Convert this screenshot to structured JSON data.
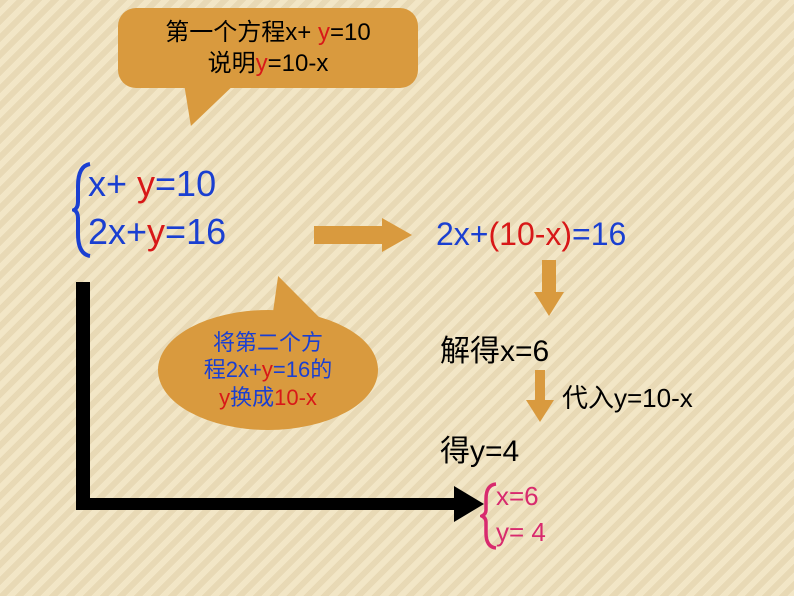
{
  "colors": {
    "blue": "#1a3fd1",
    "red": "#d81818",
    "black": "#000000",
    "orange": "#d99a3e",
    "magenta": "#d82a6e",
    "bg_stripe_light": "#f2e6c6",
    "bg_stripe_dark": "#e8d9b5"
  },
  "bubble1": {
    "line1": [
      {
        "t": "第一个方程x+ ",
        "c": "black"
      },
      {
        "t": "y",
        "c": "red"
      },
      {
        "t": "=10",
        "c": "black"
      }
    ],
    "line2": [
      {
        "t": "说明",
        "c": "black"
      },
      {
        "t": "y",
        "c": "red"
      },
      {
        "t": "=10-x",
        "c": "black"
      }
    ]
  },
  "system": {
    "eq1": [
      {
        "t": "x+ ",
        "c": "blue"
      },
      {
        "t": "y",
        "c": "red"
      },
      {
        "t": "=10",
        "c": "blue"
      }
    ],
    "eq2": [
      {
        "t": "2x+",
        "c": "blue"
      },
      {
        "t": "y",
        "c": "red"
      },
      {
        "t": "=16",
        "c": "blue"
      }
    ]
  },
  "bubble2": {
    "line1": [
      {
        "t": "将第二个方",
        "c": "blue"
      }
    ],
    "line2": [
      {
        "t": "程2x+",
        "c": "blue"
      },
      {
        "t": "y",
        "c": "red"
      },
      {
        "t": "=16的",
        "c": "blue"
      }
    ],
    "line3": [
      {
        "t": "y",
        "c": "red"
      },
      {
        "t": "换成",
        "c": "blue"
      },
      {
        "t": "10-x",
        "c": "red"
      }
    ]
  },
  "substitution": [
    {
      "t": "2x+",
      "c": "blue"
    },
    {
      "t": "(10-x)",
      "c": "red"
    },
    {
      "t": "=16",
      "c": "blue"
    }
  ],
  "solve1": [
    {
      "t": "解得x=6",
      "c": "black"
    }
  ],
  "subst_label": [
    {
      "t": "代入y=10-x",
      "c": "black"
    }
  ],
  "solve2": [
    {
      "t": "得y=4",
      "c": "black"
    }
  ],
  "result": {
    "r1": [
      {
        "t": "x=6",
        "c": "magenta"
      }
    ],
    "r2": [
      {
        "t": "y= 4",
        "c": "magenta"
      }
    ]
  },
  "fonts": {
    "bubble": 24,
    "system": 36,
    "bubble2": 22,
    "subst": 32,
    "solve": 30,
    "label": 26,
    "result": 26
  }
}
